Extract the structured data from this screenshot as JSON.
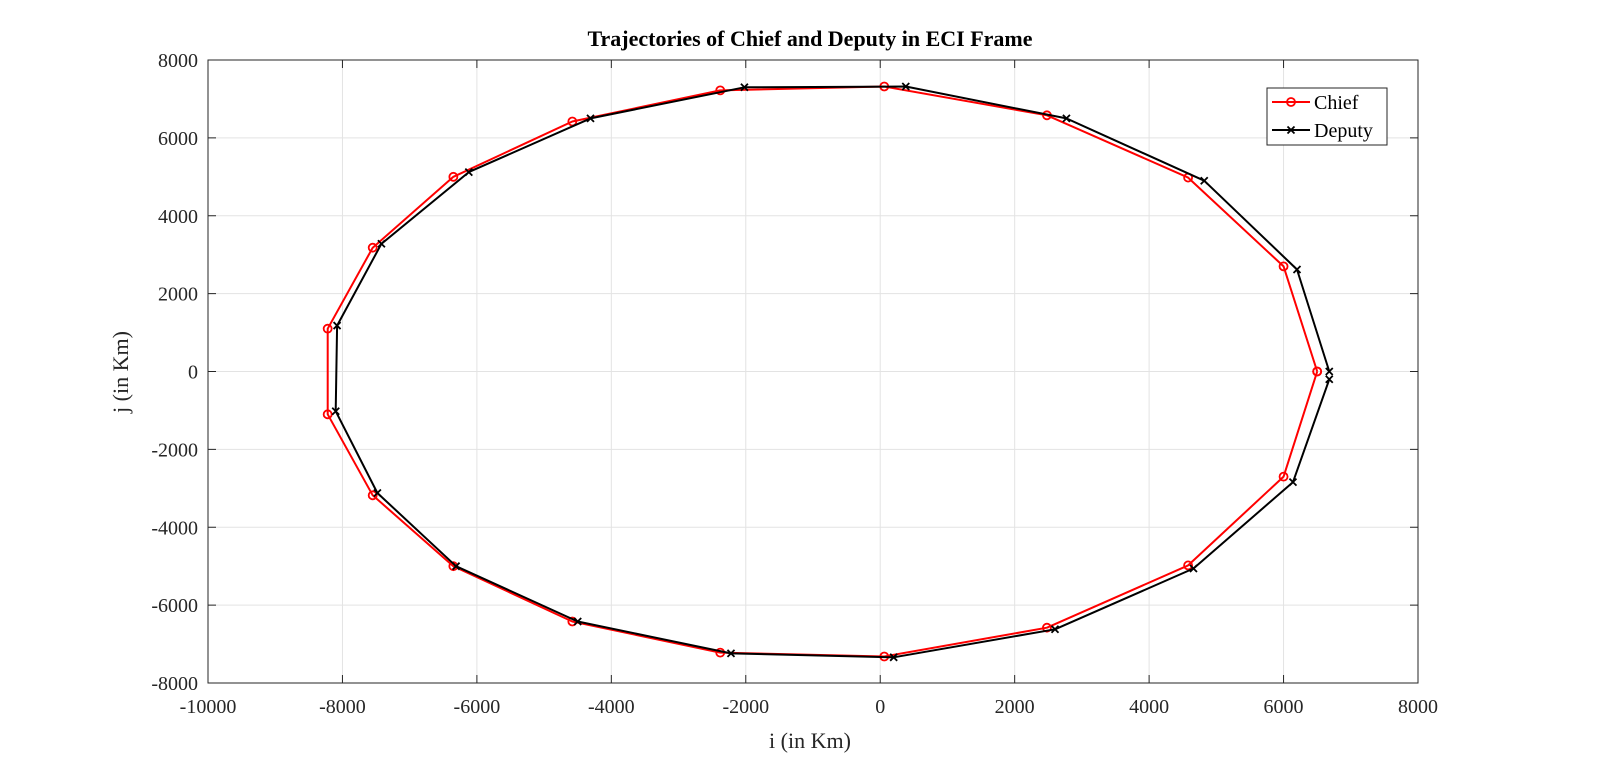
{
  "chart_data": {
    "type": "line",
    "title": "Trajectories of Chief and Deputy in ECI Frame",
    "xlabel": "i (in Km)",
    "ylabel": "j (in Km)",
    "xlim": [
      -10000,
      8000
    ],
    "ylim": [
      -8000,
      8000
    ],
    "xticks": [
      -10000,
      -8000,
      -6000,
      -4000,
      -2000,
      0,
      2000,
      4000,
      6000,
      8000
    ],
    "yticks": [
      -8000,
      -6000,
      -4000,
      -2000,
      0,
      2000,
      4000,
      6000,
      8000
    ],
    "xtick_labels": [
      "-10000",
      "-8000",
      "-6000",
      "-4000",
      "-2000",
      "0",
      "2000",
      "4000",
      "6000",
      "8000"
    ],
    "ytick_labels": [
      "-8000",
      "-6000",
      "-4000",
      "-2000",
      "0",
      "2000",
      "4000",
      "6000",
      "8000"
    ],
    "grid": true,
    "legend_position": "top-right",
    "series": [
      {
        "name": "Chief",
        "color": "#ff0000",
        "marker": "circle",
        "x": [
          6500,
          6000,
          4580,
          2480,
          60,
          -2380,
          -4580,
          -6350,
          -7550,
          -8220,
          -8220,
          -7550,
          -6350,
          -4580,
          -2380,
          60,
          2480,
          4580,
          6000,
          6500
        ],
        "y": [
          0,
          2700,
          4980,
          6580,
          7320,
          7220,
          6420,
          5000,
          3180,
          1100,
          -1100,
          -3180,
          -5000,
          -6420,
          -7220,
          -7320,
          -6580,
          -4980,
          -2700,
          0
        ]
      },
      {
        "name": "Deputy",
        "color": "#000000",
        "marker": "x",
        "x": [
          6680,
          6200,
          4820,
          2770,
          380,
          -2020,
          -4310,
          -6120,
          -7420,
          -8080,
          -8100,
          -7480,
          -6310,
          -4500,
          -2220,
          200,
          2600,
          4660,
          6140,
          6680
        ],
        "y": [
          0,
          2620,
          4900,
          6500,
          7320,
          7300,
          6500,
          5120,
          3280,
          1180,
          -1020,
          -3120,
          -5000,
          -6420,
          -7240,
          -7340,
          -6620,
          -5060,
          -2840,
          -200
        ]
      }
    ]
  }
}
